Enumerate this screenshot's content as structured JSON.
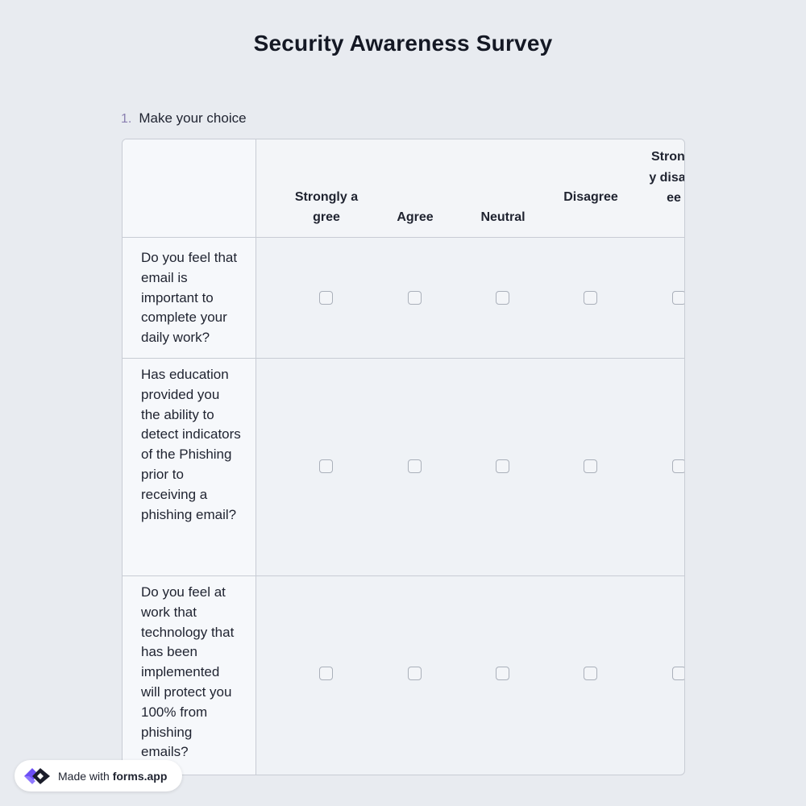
{
  "page": {
    "title": "Security Awareness Survey"
  },
  "question": {
    "number": "1.",
    "label": "Make your choice",
    "columns": [
      "Strongly agree",
      "Agree",
      "Neutral",
      "Disagree",
      "Strongly disagree"
    ],
    "rows": [
      "Do you feel that email is important to complete your daily work?",
      "Has education provided you the ability to detect indicators of the Phishing prior to receiving a phishing email?",
      "Do you feel at work that technology that has been implemented will protect you 100% from phishing emails?"
    ],
    "answers": [
      [
        false,
        false,
        false,
        false,
        false
      ],
      [
        false,
        false,
        false,
        false,
        false
      ],
      [
        false,
        false,
        false,
        false,
        false
      ]
    ]
  },
  "badge": {
    "prefix": "Made with ",
    "brand": "forms.app",
    "logo_icon": "forms-app-logo-icon"
  },
  "colors": {
    "background": "#e8ebf0",
    "border": "#c8ccd4",
    "accent": "#6c4ff5"
  }
}
